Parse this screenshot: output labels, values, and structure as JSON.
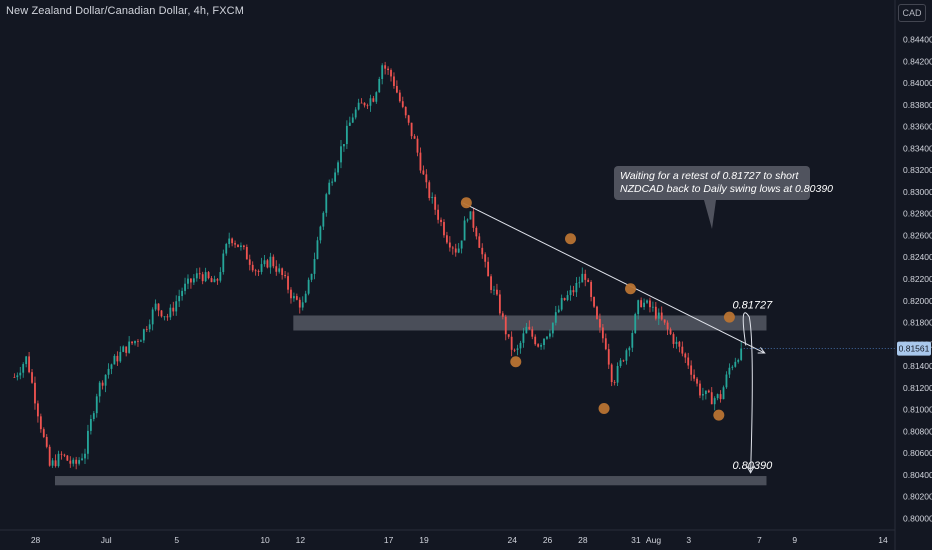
{
  "header": {
    "symbol_title": "New Zealand Dollar/Canadian Dollar, 4h, FXCM",
    "currency": "CAD"
  },
  "annotation": {
    "line1": "Waiting for a retest of 0.81727 to short",
    "line2": "NZDCAD back to Daily swing lows at 0.80390"
  },
  "colors": {
    "background": "#131722",
    "bull": "#26a69a",
    "bear": "#ef5350",
    "zone": "#787b86",
    "marker": "#b87333",
    "text": "#d1d4dc",
    "price_badge": "#a9c8ec"
  },
  "chart_data": {
    "type": "candlestick",
    "ylim": [
      0.7995,
      0.845
    ],
    "y_ticks": [
      "0.84400",
      "0.84200",
      "0.84000",
      "0.83800",
      "0.83600",
      "0.83400",
      "0.83200",
      "0.83000",
      "0.82800",
      "0.82600",
      "0.82400",
      "0.82200",
      "0.82000",
      "0.81800",
      "0.81600",
      "0.81400",
      "0.81200",
      "0.81000",
      "0.80800",
      "0.80600",
      "0.80400",
      "0.80200",
      "0.80000"
    ],
    "x_ticks": [
      {
        "label": "28",
        "day": -3
      },
      {
        "label": "Jul",
        "day": 1
      },
      {
        "label": "5",
        "day": 5
      },
      {
        "label": "10",
        "day": 10
      },
      {
        "label": "12",
        "day": 12
      },
      {
        "label": "17",
        "day": 17
      },
      {
        "label": "19",
        "day": 19
      },
      {
        "label": "24",
        "day": 24
      },
      {
        "label": "26",
        "day": 26
      },
      {
        "label": "28",
        "day": 28
      },
      {
        "label": "31",
        "day": 31
      },
      {
        "label": "Aug",
        "day": 32
      },
      {
        "label": "3",
        "day": 34
      },
      {
        "label": "7",
        "day": 38
      },
      {
        "label": "9",
        "day": 40
      },
      {
        "label": "14",
        "day": 45
      }
    ],
    "x_domain_days": [
      -3.4,
      45
    ],
    "last_day": 37.0,
    "current_price": "0.81561",
    "anchors": [
      [
        -4.2,
        0.813
      ],
      [
        -3.5,
        0.8148
      ],
      [
        -3.0,
        0.8108
      ],
      [
        -2.2,
        0.8048
      ],
      [
        -1.5,
        0.8058
      ],
      [
        -0.8,
        0.8048
      ],
      [
        -0.2,
        0.8062
      ],
      [
        0.5,
        0.8118
      ],
      [
        1.2,
        0.814
      ],
      [
        2.0,
        0.8155
      ],
      [
        3.0,
        0.8168
      ],
      [
        3.8,
        0.8195
      ],
      [
        4.5,
        0.8185
      ],
      [
        5.3,
        0.821
      ],
      [
        6.3,
        0.8225
      ],
      [
        7.2,
        0.8214
      ],
      [
        8.0,
        0.826
      ],
      [
        8.8,
        0.8245
      ],
      [
        9.6,
        0.8226
      ],
      [
        10.3,
        0.8238
      ],
      [
        11.0,
        0.8222
      ],
      [
        11.6,
        0.8202
      ],
      [
        12.2,
        0.8195
      ],
      [
        12.8,
        0.824
      ],
      [
        13.5,
        0.83
      ],
      [
        14.3,
        0.834
      ],
      [
        15.0,
        0.8372
      ],
      [
        15.6,
        0.8382
      ],
      [
        16.2,
        0.8388
      ],
      [
        16.6,
        0.8418
      ],
      [
        17.2,
        0.8405
      ],
      [
        17.8,
        0.8375
      ],
      [
        18.5,
        0.8345
      ],
      [
        19.1,
        0.8305
      ],
      [
        19.7,
        0.8282
      ],
      [
        20.3,
        0.8258
      ],
      [
        20.9,
        0.8245
      ],
      [
        21.5,
        0.8282
      ],
      [
        22.0,
        0.8262
      ],
      [
        22.6,
        0.8222
      ],
      [
        23.2,
        0.8198
      ],
      [
        23.8,
        0.8162
      ],
      [
        24.2,
        0.815
      ],
      [
        24.8,
        0.8174
      ],
      [
        25.5,
        0.816
      ],
      [
        26.2,
        0.8176
      ],
      [
        26.8,
        0.8198
      ],
      [
        27.5,
        0.821
      ],
      [
        28.1,
        0.8226
      ],
      [
        28.5,
        0.8198
      ],
      [
        28.9,
        0.8174
      ],
      [
        29.3,
        0.816
      ],
      [
        29.7,
        0.8125
      ],
      [
        30.2,
        0.8145
      ],
      [
        30.7,
        0.8165
      ],
      [
        31.2,
        0.82
      ],
      [
        31.9,
        0.8193
      ],
      [
        32.6,
        0.8178
      ],
      [
        33.3,
        0.816
      ],
      [
        34.0,
        0.8142
      ],
      [
        34.6,
        0.8117
      ],
      [
        35.2,
        0.811
      ],
      [
        35.8,
        0.8112
      ],
      [
        36.3,
        0.8138
      ],
      [
        37.0,
        0.8156
      ]
    ],
    "zones": [
      {
        "name": "resistance-zone",
        "label": "0.81727",
        "y_top": 0.81865,
        "y_bottom": 0.81727,
        "x_start_day": 11.6,
        "x_end_day": 38.4
      },
      {
        "name": "support-zone",
        "label": "0.80390",
        "y_top": 0.8039,
        "y_bottom": 0.80305,
        "x_start_day": -1.9,
        "x_end_day": 38.4
      }
    ],
    "trendline": {
      "start": {
        "day": 21.2,
        "price": 0.829
      },
      "end": {
        "day": 38.3,
        "price": 0.8152
      }
    },
    "swing_markers": [
      {
        "day": 21.4,
        "price": 0.829
      },
      {
        "day": 24.2,
        "price": 0.8144
      },
      {
        "day": 27.3,
        "price": 0.8257
      },
      {
        "day": 29.2,
        "price": 0.8101
      },
      {
        "day": 30.7,
        "price": 0.8211
      },
      {
        "day": 35.7,
        "price": 0.8095
      },
      {
        "day": 36.3,
        "price": 0.8185
      }
    ],
    "projection": {
      "retest_peak": {
        "day": 37.2,
        "price": 0.8187
      },
      "target": {
        "day": 37.5,
        "price": 0.8042
      }
    }
  }
}
